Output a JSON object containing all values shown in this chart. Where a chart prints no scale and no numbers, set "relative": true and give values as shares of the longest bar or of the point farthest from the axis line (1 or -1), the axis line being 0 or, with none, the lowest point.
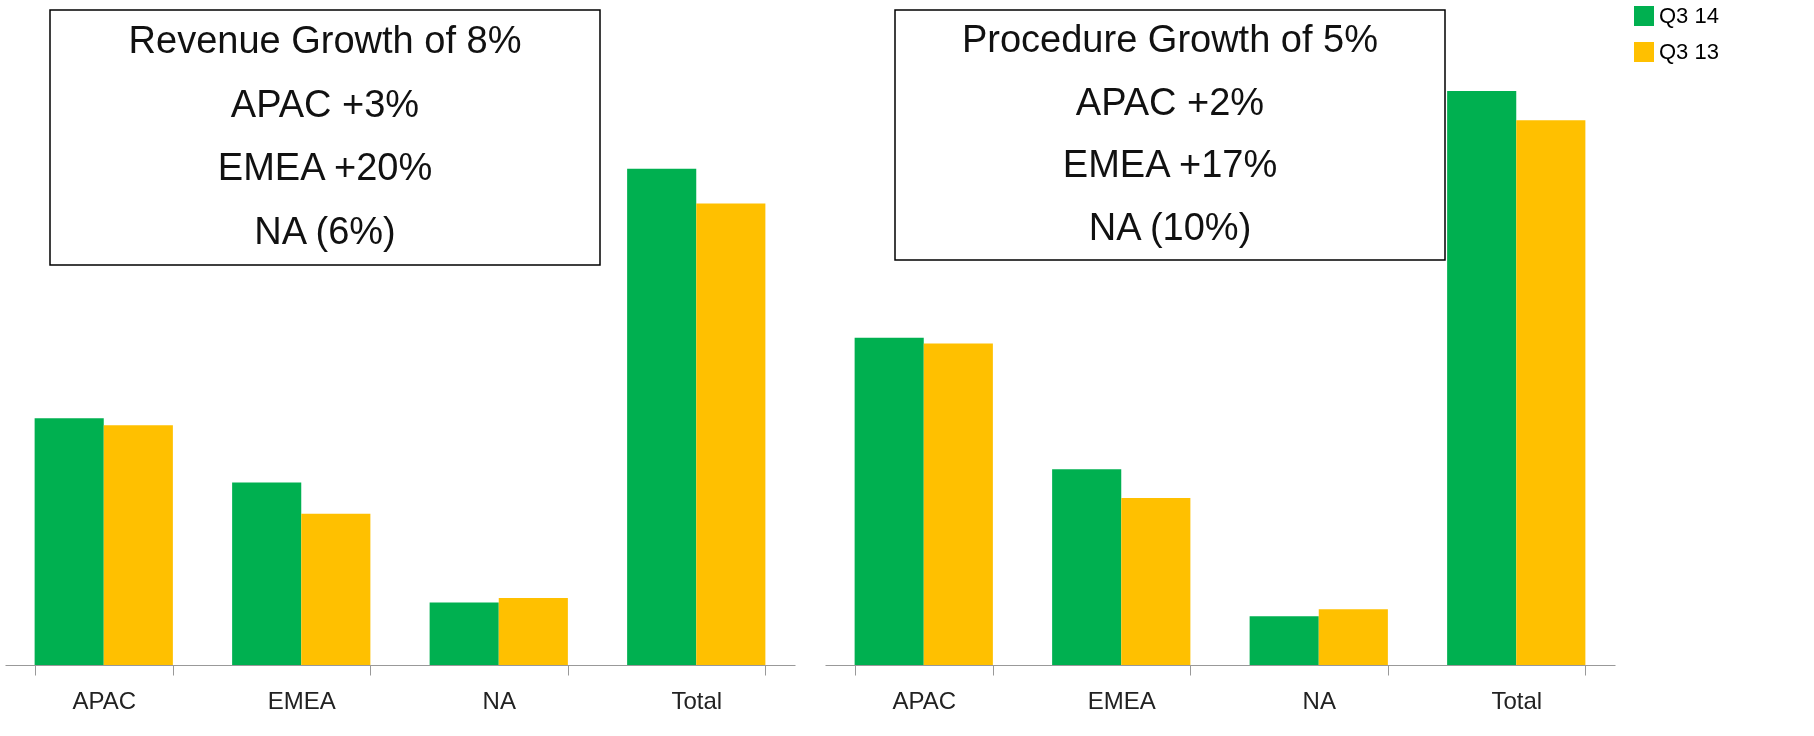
{
  "chart_data": [
    {
      "type": "bar",
      "relative": true,
      "categories": [
        "APAC",
        "EMEA",
        "NA",
        "Total"
      ],
      "annotations": [
        "Revenue Growth of 8%",
        "APAC +3%",
        "EMEA +20%",
        "NA (6%)"
      ],
      "legend": "right",
      "series": [
        {
          "name": "Q3 14",
          "color": "#00b050",
          "values": [
            0.497,
            0.368,
            0.126,
            1
          ]
        },
        {
          "name": "Q3 13",
          "color": "#ffc000",
          "values": [
            0.483,
            0.305,
            0.135,
            0.93
          ]
        }
      ]
    },
    {
      "type": "bar",
      "relative": true,
      "categories": [
        "APAC",
        "EMEA",
        "NA",
        "Total"
      ],
      "annotations": [
        "Procedure Growth of 5%",
        "APAC +2%",
        "EMEA +17%",
        "NA (10%)"
      ],
      "legend": "right",
      "series": [
        {
          "name": "Q3 14",
          "color": "#00b050",
          "values": [
            0.57,
            0.341,
            0.085,
            1
          ]
        },
        {
          "name": "Q3 13",
          "color": "#ffc000",
          "values": [
            0.56,
            0.291,
            0.097,
            0.949
          ]
        }
      ]
    }
  ]
}
